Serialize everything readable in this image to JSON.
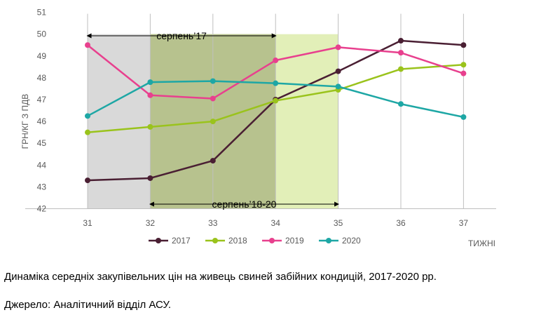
{
  "chart_data": {
    "type": "line",
    "categories": [
      "31",
      "32",
      "33",
      "34",
      "35",
      "36",
      "37"
    ],
    "xlabel": "ТИЖНІ",
    "ylabel": "ГРН/КГ З ПДВ",
    "ylim": [
      42,
      51
    ],
    "yticks": [
      "42",
      "43",
      "44",
      "45",
      "46",
      "47",
      "48",
      "49",
      "50",
      "51"
    ],
    "grid": "vertical",
    "legend_position": "bottom",
    "series": [
      {
        "name": "2017",
        "color": "#4a1f33",
        "values": [
          43.3,
          43.4,
          44.2,
          47.0,
          48.3,
          49.7,
          49.5
        ]
      },
      {
        "name": "2018",
        "color": "#9ac31c",
        "values": [
          45.5,
          45.75,
          46.0,
          46.95,
          47.45,
          48.4,
          48.6
        ]
      },
      {
        "name": "2019",
        "color": "#e8408e",
        "values": [
          49.5,
          47.2,
          47.05,
          48.8,
          49.4,
          49.15,
          48.2
        ]
      },
      {
        "name": "2020",
        "color": "#1ea7a5",
        "values": [
          46.25,
          47.8,
          47.85,
          47.75,
          47.6,
          46.8,
          46.2
        ]
      }
    ],
    "annotations": [
      {
        "label": "серпень’17",
        "from": "31",
        "to": "34",
        "color": "#d9d9d9"
      },
      {
        "label": "серпень’18-20",
        "from": "32",
        "to": "35",
        "color": "#e2efb8"
      }
    ],
    "overlap_color": "#b7c28e"
  },
  "caption": {
    "line1": "Динаміка середніх закупівельних цін на живець свиней забійних кондицій, 2017-2020 рр.",
    "line2": "Джерело: Аналітичний відділ АСУ."
  }
}
